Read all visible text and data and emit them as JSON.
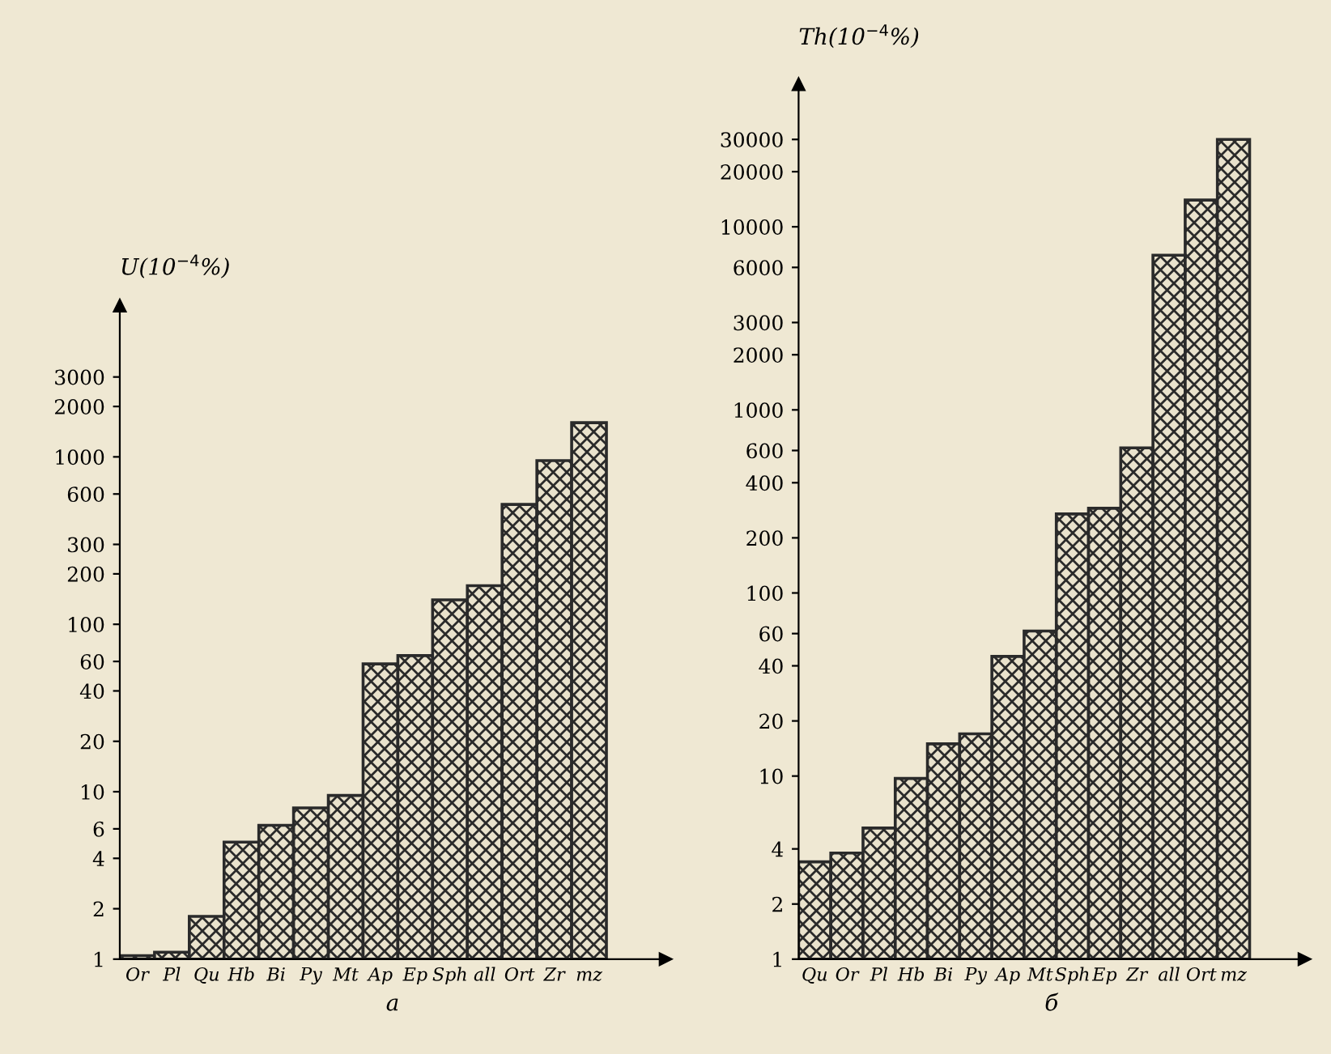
{
  "chart_data": [
    {
      "type": "bar",
      "ylabel": "U(10$^{−4}$%)",
      "xlabel": "а",
      "log": true,
      "grid": false,
      "legend": false,
      "color": "#2a2a2a",
      "categories": [
        "Or",
        "Pl",
        "Qu",
        "Hb",
        "Bi",
        "Py",
        "Mt",
        "Ap",
        "Ep",
        "Sph",
        "all",
        "Ort",
        "Zr",
        "mz"
      ],
      "values": [
        1.05,
        1.1,
        1.8,
        5,
        6.3,
        8,
        9.5,
        58,
        65,
        140,
        170,
        520,
        950,
        1600
      ],
      "ylim": [
        1,
        8000
      ],
      "yticks": [
        1,
        2,
        4,
        6,
        10,
        20,
        40,
        60,
        100,
        200,
        300,
        600,
        1000,
        2000,
        3000
      ]
    },
    {
      "type": "bar",
      "ylabel": "Th(10$^{−4}$%)",
      "xlabel": "б",
      "log": true,
      "grid": false,
      "legend": false,
      "color": "#2a2a2a",
      "categories": [
        "Qu",
        "Or",
        "Pl",
        "Hb",
        "Bi",
        "Py",
        "Ap",
        "Mt",
        "Sph",
        "Ep",
        "Zr",
        "all",
        "Ort",
        "mz"
      ],
      "values": [
        3.4,
        3.8,
        5.2,
        9.7,
        15,
        17,
        45,
        62,
        270,
        290,
        620,
        7000,
        14000,
        30000
      ],
      "ylim": [
        1,
        60000
      ],
      "yticks": [
        1,
        2,
        4,
        10,
        20,
        40,
        60,
        100,
        200,
        400,
        600,
        1000,
        2000,
        3000,
        6000,
        10000,
        20000,
        30000
      ]
    }
  ]
}
